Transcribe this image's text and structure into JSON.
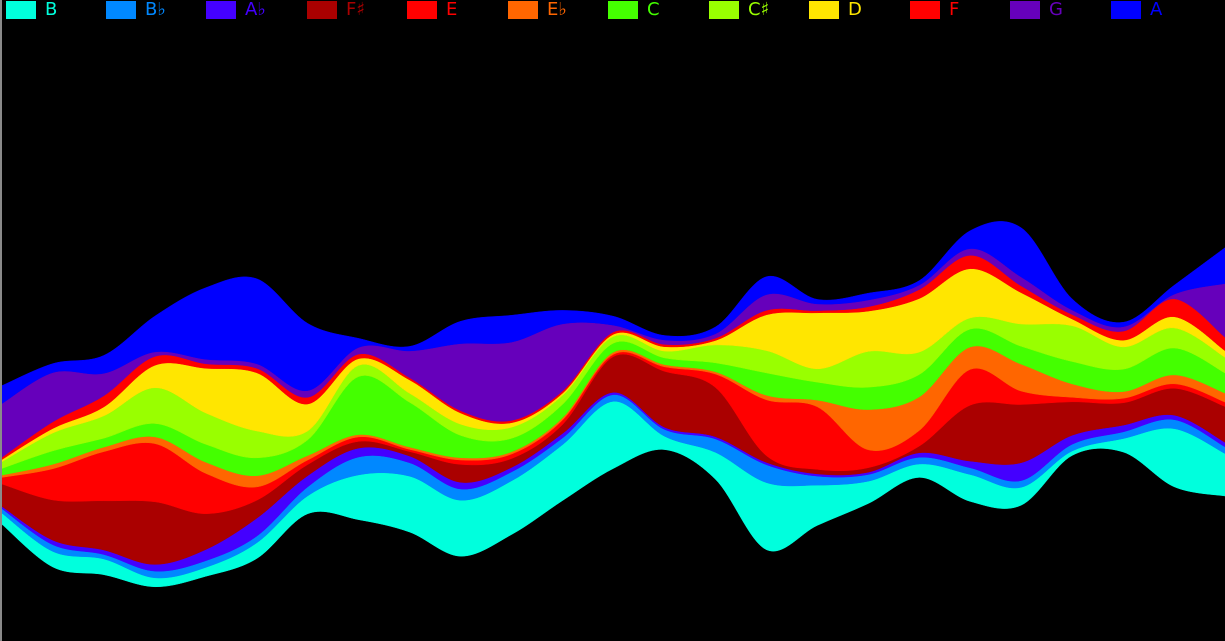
{
  "chart_data": {
    "type": "area",
    "variant": "streamgraph",
    "background": "#000000",
    "legend_position": "top",
    "x": [
      0,
      1,
      2,
      3,
      4,
      5,
      6,
      7,
      8,
      9,
      10,
      11,
      12,
      13,
      14,
      15,
      16,
      17,
      18,
      19,
      20,
      21,
      22,
      23,
      24
    ],
    "series": [
      {
        "name": "B",
        "color": "#00FFDD",
        "values": [
          0.5,
          0.7,
          0.7,
          0.4,
          0.4,
          0.7,
          0.8,
          2.0,
          2.5,
          2.5,
          2.4,
          2.5,
          3.0,
          0.6,
          1.2,
          3.0,
          1.8,
          1.0,
          0.6,
          1.2,
          0.8,
          0.2,
          0.6,
          2.6,
          1.9
        ]
      },
      {
        "name": "B♭",
        "color": "#0088FF",
        "values": [
          0.2,
          0.3,
          0.2,
          0.3,
          0.3,
          0.3,
          0.4,
          0.8,
          0.6,
          0.5,
          0.4,
          0.3,
          0.3,
          0.3,
          0.6,
          0.8,
          0.4,
          0.3,
          0.3,
          0.3,
          0.3,
          0.3,
          0.3,
          0.4,
          0.3
        ]
      },
      {
        "name": "A♭",
        "color": "#4400FF",
        "values": [
          0.1,
          0.2,
          0.2,
          0.3,
          0.5,
          0.8,
          0.5,
          0.4,
          0.3,
          0.3,
          0.2,
          0.2,
          0.1,
          0.1,
          0.1,
          0.1,
          0.1,
          0.1,
          0.2,
          0.3,
          0.8,
          0.4,
          0.3,
          0.2,
          0.2
        ]
      },
      {
        "name": "F♯",
        "color": "#AA0000",
        "values": [
          1.0,
          1.8,
          2.2,
          2.8,
          1.6,
          0.8,
          0.5,
          0.3,
          0.2,
          0.8,
          0.4,
          0.4,
          1.6,
          2.5,
          2.2,
          0.3,
          0.2,
          0.2,
          0.3,
          2.5,
          2.6,
          1.5,
          1.0,
          1.2,
          1.6
        ]
      },
      {
        "name": "E",
        "color": "#FF0000",
        "values": [
          0.3,
          1.4,
          2.2,
          2.6,
          1.8,
          0.6,
          0.2,
          0.2,
          0.1,
          0.2,
          0.2,
          0.2,
          0.1,
          0.2,
          0.6,
          2.5,
          2.8,
          0.8,
          0.7,
          1.6,
          0.6,
          0.2,
          0.2,
          0.2,
          0.2
        ]
      },
      {
        "name": "E♭",
        "color": "#FF6600",
        "values": [
          0.1,
          0.2,
          0.2,
          0.3,
          0.5,
          0.5,
          0.2,
          0.1,
          0.1,
          0.1,
          0.1,
          0.1,
          0.1,
          0.1,
          0.1,
          0.2,
          0.3,
          1.8,
          1.5,
          1.0,
          1.2,
          0.6,
          0.3,
          0.4,
          0.4
        ]
      },
      {
        "name": "C",
        "color": "#44FF00",
        "values": [
          0.3,
          0.6,
          0.4,
          0.6,
          0.8,
          0.8,
          0.7,
          2.6,
          2.0,
          1.0,
          0.6,
          0.6,
          0.4,
          0.3,
          0.4,
          1.0,
          0.8,
          1.0,
          1.0,
          0.8,
          0.8,
          1.0,
          1.0,
          1.2,
          0.9
        ]
      },
      {
        "name": "C♯",
        "color": "#99FF00",
        "values": [
          0.3,
          0.8,
          1.0,
          1.6,
          1.4,
          1.2,
          0.4,
          0.5,
          0.4,
          0.5,
          0.5,
          0.4,
          0.3,
          0.3,
          0.8,
          1.0,
          0.6,
          1.6,
          1.0,
          0.5,
          1.0,
          1.6,
          1.0,
          0.9,
          0.7
        ]
      },
      {
        "name": "D",
        "color": "#FFE600",
        "values": [
          0.1,
          0.2,
          0.4,
          1.0,
          2.0,
          2.6,
          1.2,
          0.3,
          0.6,
          0.5,
          0.2,
          0.1,
          0.1,
          0.2,
          0.2,
          1.6,
          2.5,
          1.8,
          2.4,
          2.2,
          1.4,
          0.3,
          0.3,
          0.5,
          0.3
        ]
      },
      {
        "name": "F",
        "color": "#FF0000",
        "values": [
          0.1,
          0.3,
          0.5,
          0.4,
          0.2,
          0.2,
          0.3,
          0.2,
          0.1,
          0.1,
          0.1,
          0.1,
          0.1,
          0.1,
          0.1,
          0.2,
          0.1,
          0.2,
          0.4,
          0.6,
          0.3,
          0.2,
          0.4,
          0.8,
          0.6
        ]
      },
      {
        "name": "G",
        "color": "#6600BB",
        "values": [
          2.4,
          2.2,
          1.0,
          0.2,
          0.2,
          0.2,
          0.3,
          0.3,
          1.2,
          3.0,
          3.5,
          3.0,
          0.3,
          0.2,
          0.2,
          0.7,
          0.3,
          0.3,
          0.2,
          0.3,
          0.4,
          0.2,
          0.2,
          0.2,
          2.4
        ]
      },
      {
        "name": "A",
        "color": "#0000FF",
        "values": [
          0.8,
          0.4,
          0.8,
          1.6,
          3.2,
          3.8,
          3.0,
          0.4,
          0.2,
          1.0,
          1.2,
          0.6,
          0.4,
          0.2,
          0.3,
          0.8,
          0.2,
          0.3,
          0.2,
          0.8,
          2.2,
          0.5,
          0.2,
          0.4,
          1.6
        ]
      }
    ]
  }
}
